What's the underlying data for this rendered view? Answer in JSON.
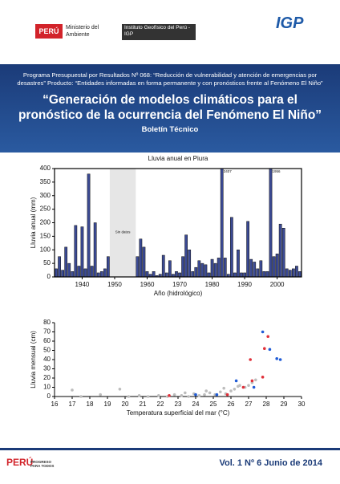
{
  "header": {
    "country": "PERÚ",
    "ministry": "Ministerio del Ambiente",
    "institute": "Instituto Geofísico del Perú - IGP",
    "logo": "IGP"
  },
  "banner": {
    "program": "Programa Presupuestal por Resultados Nº 068: “Reducción de vulnerabilidad y atención de emergencias por desastres” Producto: “Entidades informadas en forma permanente y con pronósticos frente al Fenómeno El Niño”",
    "title": "“Generación de modelos climáticos para el pronóstico de la ocurrencia del Fenómeno El Niño”",
    "subtitle": "Boletín Técnico"
  },
  "chart_data": [
    {
      "type": "bar",
      "title": "Lluvia anual en Piura",
      "ylabel": "Lluvia anual (mm)",
      "xlabel": "Año (hidrológico)",
      "color": "#3b4a94",
      "x": [
        1932,
        1933,
        1934,
        1935,
        1936,
        1937,
        1938,
        1939,
        1940,
        1941,
        1942,
        1943,
        1944,
        1945,
        1946,
        1947,
        1948,
        1949,
        1950,
        1951,
        1952,
        1953,
        1954,
        1955,
        1956,
        1957,
        1958,
        1959,
        1960,
        1961,
        1962,
        1963,
        1964,
        1965,
        1966,
        1967,
        1968,
        1969,
        1970,
        1971,
        1972,
        1973,
        1974,
        1975,
        1976,
        1977,
        1978,
        1979,
        1980,
        1981,
        1982,
        1983,
        1984,
        1985,
        1986,
        1987,
        1988,
        1989,
        1990,
        1991,
        1992,
        1993,
        1994,
        1995,
        1996,
        1997,
        1998,
        1999,
        2000,
        2001,
        2002,
        2003,
        2004,
        2005,
        2006,
        2007
      ],
      "values": [
        30,
        75,
        25,
        110,
        50,
        20,
        190,
        40,
        185,
        30,
        380,
        40,
        200,
        15,
        20,
        30,
        75,
        null,
        null,
        null,
        null,
        null,
        null,
        null,
        null,
        75,
        140,
        110,
        20,
        10,
        20,
        5,
        10,
        80,
        15,
        60,
        10,
        20,
        15,
        75,
        155,
        100,
        20,
        35,
        60,
        50,
        45,
        15,
        65,
        50,
        70,
        3407,
        70,
        10,
        220,
        15,
        100,
        15,
        15,
        205,
        65,
        55,
        30,
        60,
        20,
        20,
        1956,
        75,
        85,
        195,
        180,
        30,
        25,
        30,
        40,
        20
      ],
      "value_labels": [
        null,
        null,
        null,
        null,
        null,
        null,
        null,
        null,
        null,
        null,
        null,
        null,
        null,
        null,
        null,
        null,
        null,
        null,
        null,
        null,
        null,
        null,
        null,
        null,
        null,
        null,
        null,
        null,
        null,
        null,
        null,
        null,
        null,
        null,
        null,
        null,
        null,
        null,
        null,
        null,
        null,
        null,
        null,
        null,
        null,
        null,
        null,
        null,
        null,
        null,
        null,
        "3407",
        null,
        null,
        null,
        null,
        null,
        null,
        null,
        null,
        null,
        null,
        null,
        null,
        null,
        null,
        "1956",
        null,
        null,
        null,
        null,
        null,
        null,
        null,
        null,
        null
      ],
      "annotations": [
        {
          "text": "Sin datos",
          "xrange": [
            1948.5,
            1956.5
          ]
        }
      ],
      "xlim": [
        1931.5,
        2007.5
      ],
      "xticks": [
        1940,
        1950,
        1960,
        1970,
        1980,
        1990,
        2000
      ],
      "ylim": [
        0,
        400
      ],
      "yticks": [
        0,
        50,
        100,
        150,
        200,
        250,
        300,
        350,
        400
      ]
    },
    {
      "type": "scatter",
      "ylabel": "Lluvia mensual (cm)",
      "xlabel": "Temperatura superficial del mar (°C)",
      "series": [
        {
          "color": "#bdbdbd",
          "x": [
            17,
            17.5,
            18.6,
            19.7,
            20.2,
            20.8,
            21.3,
            21.9,
            22.4,
            22.8,
            23.2,
            23.6,
            23.9,
            24.2,
            24.5,
            24.8,
            25.1,
            25.4,
            25.7,
            26,
            26.2,
            26.5,
            26.8,
            27,
            27.4,
            23.4,
            24.6,
            25.6,
            26.4,
            27.2
          ],
          "y": [
            7,
            0,
            2,
            8,
            0,
            1,
            0,
            1,
            0,
            2,
            1,
            0,
            3,
            1,
            2,
            4,
            2,
            5,
            3,
            6,
            8,
            12,
            10,
            12,
            18,
            4,
            6,
            9,
            11,
            15
          ]
        },
        {
          "color": "#1f5bd6",
          "x": [
            27.8,
            28.2,
            28.6,
            26.3,
            27.3,
            25.2,
            24,
            28.8
          ],
          "y": [
            70,
            51,
            41,
            17,
            10,
            2,
            2,
            40
          ]
        },
        {
          "color": "#e0303a",
          "x": [
            28.1,
            27.9,
            27.8,
            27.1,
            27.2,
            26.7,
            22.5,
            25.8
          ],
          "y": [
            65,
            52,
            21,
            40,
            17,
            10,
            1,
            2
          ]
        }
      ],
      "xlim": [
        16,
        30
      ],
      "xticks": [
        16,
        17,
        18,
        19,
        20,
        21,
        22,
        23,
        24,
        25,
        26,
        27,
        28,
        29,
        30
      ],
      "ylim": [
        0,
        80
      ],
      "yticks": [
        0,
        10,
        20,
        30,
        40,
        50,
        60,
        70,
        80
      ]
    }
  ],
  "footer": {
    "issue": "Vol. 1 Nº 6 Junio de 2014",
    "brand": "PERÚ",
    "slogan": "PROGRESO PARA TODOS"
  }
}
